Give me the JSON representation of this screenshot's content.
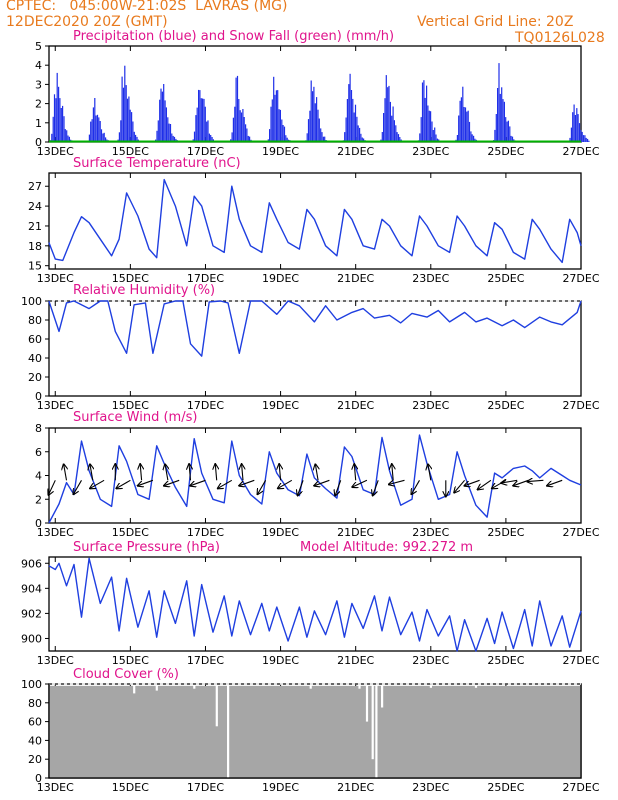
{
  "header": {
    "line1": "CPTEC:   045:00W-21:02S  LAVRAS (MG)",
    "line2": "12DEC2020 20Z (GMT)",
    "grid_note": "Vertical Grid Line: 20Z",
    "code": "TQ0126L028"
  },
  "panels": {
    "precip": {
      "title": "Precipitation (blue) and Snow Fall (green) (mm/h)",
      "y_ticks": [
        "0",
        "1",
        "2",
        "3",
        "4",
        "5"
      ],
      "x_ticks": [
        "13DEC",
        "15DEC",
        "17DEC",
        "19DEC",
        "21DEC",
        "23DEC",
        "25DEC",
        "27DEC"
      ]
    },
    "temperature": {
      "title": "Surface Temperature (nC)",
      "y_ticks": [
        "15",
        "18",
        "21",
        "24",
        "27"
      ],
      "x_ticks": [
        "13DEC",
        "15DEC",
        "17DEC",
        "19DEC",
        "21DEC",
        "23DEC",
        "25DEC",
        "27DEC"
      ]
    },
    "humidity": {
      "title": "Relative Humidity (%)",
      "y_ticks": [
        "0",
        "20",
        "40",
        "60",
        "80",
        "100"
      ],
      "x_ticks": [
        "13DEC",
        "15DEC",
        "17DEC",
        "19DEC",
        "21DEC",
        "23DEC",
        "25DEC",
        "27DEC"
      ]
    },
    "wind": {
      "title": "Surface Wind (m/s)",
      "y_ticks": [
        "0",
        "2",
        "4",
        "6",
        "8"
      ],
      "x_ticks": [
        "13DEC",
        "15DEC",
        "17DEC",
        "19DEC",
        "21DEC",
        "23DEC",
        "25DEC",
        "27DEC"
      ]
    },
    "pressure": {
      "title": "Surface Pressure (hPa)",
      "altitude_note": "Model Altitude: 992.272 m",
      "y_ticks": [
        "900",
        "902",
        "904",
        "906"
      ],
      "x_ticks": [
        "13DEC",
        "15DEC",
        "17DEC",
        "19DEC",
        "21DEC",
        "23DEC",
        "25DEC",
        "27DEC"
      ]
    },
    "cloud": {
      "title": "Cloud Cover (%)",
      "y_ticks": [
        "0",
        "20",
        "40",
        "60",
        "80",
        "100"
      ],
      "x_ticks": [
        "13DEC",
        "15DEC",
        "17DEC",
        "19DEC",
        "21DEC",
        "23DEC",
        "25DEC",
        "27DEC"
      ]
    }
  },
  "colors": {
    "header": "#e87a1e",
    "title": "#e0148c",
    "line": "#1f3fe0",
    "bar": "#1f2fe8",
    "snow": "#00b000",
    "cloud": "#a6a6a6",
    "arrow": "#000000"
  },
  "chart_data": [
    {
      "type": "bar",
      "x_start": "12DEC2020 20Z",
      "x_end": "27DEC",
      "ylim": [
        0,
        5
      ],
      "series": [
        {
          "name": "Precipitation",
          "clusters": [
            {
              "day": 13.0,
              "peak": 3.9
            },
            {
              "day": 14.0,
              "peak": 2.4
            },
            {
              "day": 14.8,
              "peak": 4.3
            },
            {
              "day": 15.8,
              "peak": 3.6
            },
            {
              "day": 16.8,
              "peak": 3.9
            },
            {
              "day": 17.8,
              "peak": 3.7
            },
            {
              "day": 18.8,
              "peak": 4.4
            },
            {
              "day": 19.8,
              "peak": 3.6
            },
            {
              "day": 20.8,
              "peak": 3.8
            },
            {
              "day": 21.8,
              "peak": 3.5
            },
            {
              "day": 22.8,
              "peak": 3.8
            },
            {
              "day": 23.8,
              "peak": 3.2
            },
            {
              "day": 24.8,
              "peak": 4.3
            },
            {
              "day": 26.8,
              "peak": 2.0
            }
          ]
        },
        {
          "name": "Snow Fall",
          "values": [
            0
          ]
        }
      ]
    },
    {
      "type": "line",
      "ylim": [
        14.5,
        29
      ],
      "series": [
        {
          "name": "Surface Temperature",
          "days": [
            12.83,
            13.0,
            13.2,
            13.5,
            13.7,
            13.9,
            14.2,
            14.5,
            14.7,
            14.9,
            15.2,
            15.5,
            15.7,
            15.9,
            16.2,
            16.5,
            16.7,
            16.9,
            17.2,
            17.5,
            17.7,
            17.9,
            18.2,
            18.5,
            18.7,
            18.9,
            19.2,
            19.5,
            19.7,
            19.9,
            20.2,
            20.5,
            20.7,
            20.9,
            21.2,
            21.5,
            21.7,
            21.9,
            22.2,
            22.5,
            22.7,
            22.9,
            23.2,
            23.5,
            23.7,
            23.9,
            24.2,
            24.5,
            24.7,
            24.9,
            25.2,
            25.5,
            25.7,
            25.9,
            26.2,
            26.5,
            26.7,
            26.9,
            27.0
          ],
          "values": [
            18.5,
            16.0,
            15.8,
            20.0,
            22.4,
            21.5,
            19.0,
            16.5,
            19.0,
            26.0,
            22.5,
            17.5,
            16.2,
            28.0,
            24.0,
            18.0,
            25.5,
            24.0,
            18.0,
            17.0,
            27.0,
            22.0,
            18.0,
            17.0,
            24.5,
            22.0,
            18.5,
            17.5,
            23.5,
            22.0,
            18.0,
            16.5,
            23.5,
            22.0,
            18.0,
            17.5,
            22.0,
            21.0,
            18.0,
            16.5,
            22.5,
            21.0,
            18.0,
            17.0,
            22.5,
            21.0,
            18.0,
            16.5,
            21.5,
            20.5,
            17.0,
            16.0,
            22.0,
            20.5,
            17.5,
            15.5,
            22.0,
            20.0,
            18.0
          ]
        }
      ]
    },
    {
      "type": "line",
      "ylim": [
        0,
        100
      ],
      "series": [
        {
          "name": "Relative Humidity",
          "days": [
            12.83,
            13.1,
            13.3,
            13.5,
            13.9,
            14.2,
            14.4,
            14.6,
            14.9,
            15.1,
            15.4,
            15.6,
            15.9,
            16.2,
            16.4,
            16.6,
            16.9,
            17.1,
            17.4,
            17.6,
            17.9,
            18.2,
            18.5,
            18.9,
            19.2,
            19.5,
            19.9,
            20.2,
            20.5,
            20.9,
            21.2,
            21.5,
            21.9,
            22.2,
            22.5,
            22.9,
            23.2,
            23.5,
            23.9,
            24.2,
            24.5,
            24.9,
            25.2,
            25.5,
            25.9,
            26.2,
            26.5,
            26.9,
            27.0
          ],
          "values": [
            100,
            68,
            98,
            100,
            92,
            100,
            100,
            68,
            45,
            96,
            98,
            45,
            97,
            100,
            100,
            55,
            42,
            99,
            100,
            98,
            45,
            100,
            100,
            86,
            100,
            95,
            78,
            95,
            80,
            88,
            92,
            82,
            85,
            77,
            87,
            83,
            90,
            78,
            88,
            78,
            82,
            74,
            80,
            72,
            83,
            78,
            75,
            88,
            100
          ]
        }
      ]
    },
    {
      "type": "line",
      "ylim": [
        0,
        8
      ],
      "series": [
        {
          "name": "Surface Wind",
          "days": [
            12.83,
            13.1,
            13.3,
            13.5,
            13.7,
            13.9,
            14.2,
            14.5,
            14.7,
            14.9,
            15.2,
            15.5,
            15.7,
            15.9,
            16.2,
            16.5,
            16.7,
            16.9,
            17.2,
            17.5,
            17.7,
            17.9,
            18.2,
            18.5,
            18.7,
            18.9,
            19.2,
            19.5,
            19.7,
            19.9,
            20.2,
            20.5,
            20.7,
            20.9,
            21.2,
            21.5,
            21.7,
            21.9,
            22.2,
            22.5,
            22.7,
            22.9,
            23.2,
            23.5,
            23.7,
            23.9,
            24.2,
            24.5,
            24.7,
            24.9,
            25.2,
            25.5,
            25.7,
            25.9,
            26.2,
            26.5,
            26.7,
            27.0
          ],
          "values": [
            0,
            1.6,
            3.4,
            2.4,
            6.9,
            4.4,
            2.0,
            1.4,
            6.5,
            5.2,
            2.4,
            2.0,
            6.5,
            5.0,
            3.0,
            1.4,
            7.1,
            4.2,
            2.0,
            1.7,
            6.9,
            4.0,
            2.4,
            1.6,
            6.0,
            4.2,
            2.8,
            2.3,
            5.8,
            3.8,
            2.9,
            2.1,
            6.4,
            5.6,
            2.8,
            2.4,
            7.2,
            4.4,
            1.5,
            2.0,
            7.4,
            5.0,
            2.0,
            2.4,
            6.0,
            4.0,
            1.5,
            0.5,
            4.2,
            3.8,
            4.6,
            4.8,
            4.4,
            3.8,
            4.6,
            4.0,
            3.6,
            3.2
          ]
        }
      ],
      "arrows": [
        {
          "day": 13.0,
          "angle": -115
        },
        {
          "day": 13.3,
          "angle": 100
        },
        {
          "day": 13.7,
          "angle": -120
        },
        {
          "day": 14.0,
          "angle": 100
        },
        {
          "day": 14.3,
          "angle": -150
        },
        {
          "day": 14.6,
          "angle": 90
        },
        {
          "day": 15.0,
          "angle": -150
        },
        {
          "day": 15.3,
          "angle": 95
        },
        {
          "day": 15.6,
          "angle": -160
        },
        {
          "day": 16.0,
          "angle": 100
        },
        {
          "day": 16.3,
          "angle": -160
        },
        {
          "day": 16.6,
          "angle": 95
        },
        {
          "day": 17.0,
          "angle": -160
        },
        {
          "day": 17.3,
          "angle": 95
        },
        {
          "day": 17.7,
          "angle": -150
        },
        {
          "day": 18.0,
          "angle": 95
        },
        {
          "day": 18.3,
          "angle": -160
        },
        {
          "day": 18.6,
          "angle": -120
        },
        {
          "day": 19.0,
          "angle": 95
        },
        {
          "day": 19.3,
          "angle": -150
        },
        {
          "day": 19.6,
          "angle": -110
        },
        {
          "day": 20.0,
          "angle": 100
        },
        {
          "day": 20.3,
          "angle": -160
        },
        {
          "day": 20.6,
          "angle": -110
        },
        {
          "day": 21.0,
          "angle": 95
        },
        {
          "day": 21.3,
          "angle": -155
        },
        {
          "day": 21.6,
          "angle": -110
        },
        {
          "day": 22.0,
          "angle": 95
        },
        {
          "day": 22.3,
          "angle": -165
        },
        {
          "day": 22.7,
          "angle": -120
        },
        {
          "day": 23.0,
          "angle": 100
        },
        {
          "day": 23.4,
          "angle": -90
        },
        {
          "day": 23.9,
          "angle": -130
        },
        {
          "day": 24.3,
          "angle": -160
        },
        {
          "day": 24.6,
          "angle": -145
        },
        {
          "day": 25.0,
          "angle": -150
        },
        {
          "day": 25.3,
          "angle": -170
        },
        {
          "day": 25.6,
          "angle": -160
        },
        {
          "day": 26.0,
          "angle": -175
        },
        {
          "day": 26.5,
          "angle": -160
        }
      ]
    },
    {
      "type": "line",
      "ylim": [
        899,
        906.5
      ],
      "series": [
        {
          "name": "Surface Pressure",
          "days": [
            12.83,
            13.0,
            13.1,
            13.3,
            13.5,
            13.7,
            13.9,
            14.2,
            14.5,
            14.7,
            14.9,
            15.2,
            15.5,
            15.7,
            15.9,
            16.2,
            16.5,
            16.7,
            16.9,
            17.2,
            17.5,
            17.7,
            17.9,
            18.2,
            18.5,
            18.7,
            18.9,
            19.2,
            19.5,
            19.7,
            19.9,
            20.2,
            20.5,
            20.7,
            20.9,
            21.2,
            21.5,
            21.7,
            21.9,
            22.2,
            22.5,
            22.7,
            22.9,
            23.2,
            23.5,
            23.7,
            23.9,
            24.2,
            24.5,
            24.7,
            24.9,
            25.2,
            25.5,
            25.7,
            25.9,
            26.2,
            26.5,
            26.7,
            27.0
          ],
          "values": [
            905.8,
            905.5,
            906.0,
            904.2,
            905.9,
            901.7,
            906.4,
            902.8,
            904.9,
            900.6,
            904.8,
            900.9,
            903.8,
            900.1,
            903.8,
            901.2,
            904.6,
            900.2,
            904.3,
            900.5,
            903.4,
            900.2,
            903.0,
            900.3,
            902.8,
            900.6,
            902.5,
            899.8,
            902.5,
            900.1,
            902.2,
            900.3,
            903.0,
            900.1,
            902.8,
            900.8,
            903.4,
            900.6,
            903.3,
            900.3,
            902.1,
            899.8,
            902.3,
            900.2,
            901.8,
            899.0,
            901.5,
            899.0,
            901.6,
            899.6,
            902.1,
            899.2,
            902.3,
            899.4,
            903.0,
            899.4,
            901.8,
            899.3,
            902.2
          ]
        }
      ]
    },
    {
      "type": "bar",
      "ylim": [
        0,
        100
      ],
      "series": [
        {
          "name": "Cloud Cover",
          "base": 100,
          "dips": [
            {
              "day": 15.1,
              "min": 90
            },
            {
              "day": 15.7,
              "min": 93
            },
            {
              "day": 16.7,
              "min": 95
            },
            {
              "day": 17.3,
              "min": 55
            },
            {
              "day": 17.6,
              "min": 0
            },
            {
              "day": 19.8,
              "min": 95
            },
            {
              "day": 21.1,
              "min": 95
            },
            {
              "day": 21.3,
              "min": 60
            },
            {
              "day": 21.45,
              "min": 20
            },
            {
              "day": 21.55,
              "min": 0
            },
            {
              "day": 21.7,
              "min": 75
            },
            {
              "day": 23.0,
              "min": 96
            },
            {
              "day": 24.2,
              "min": 96
            }
          ]
        }
      ]
    }
  ]
}
